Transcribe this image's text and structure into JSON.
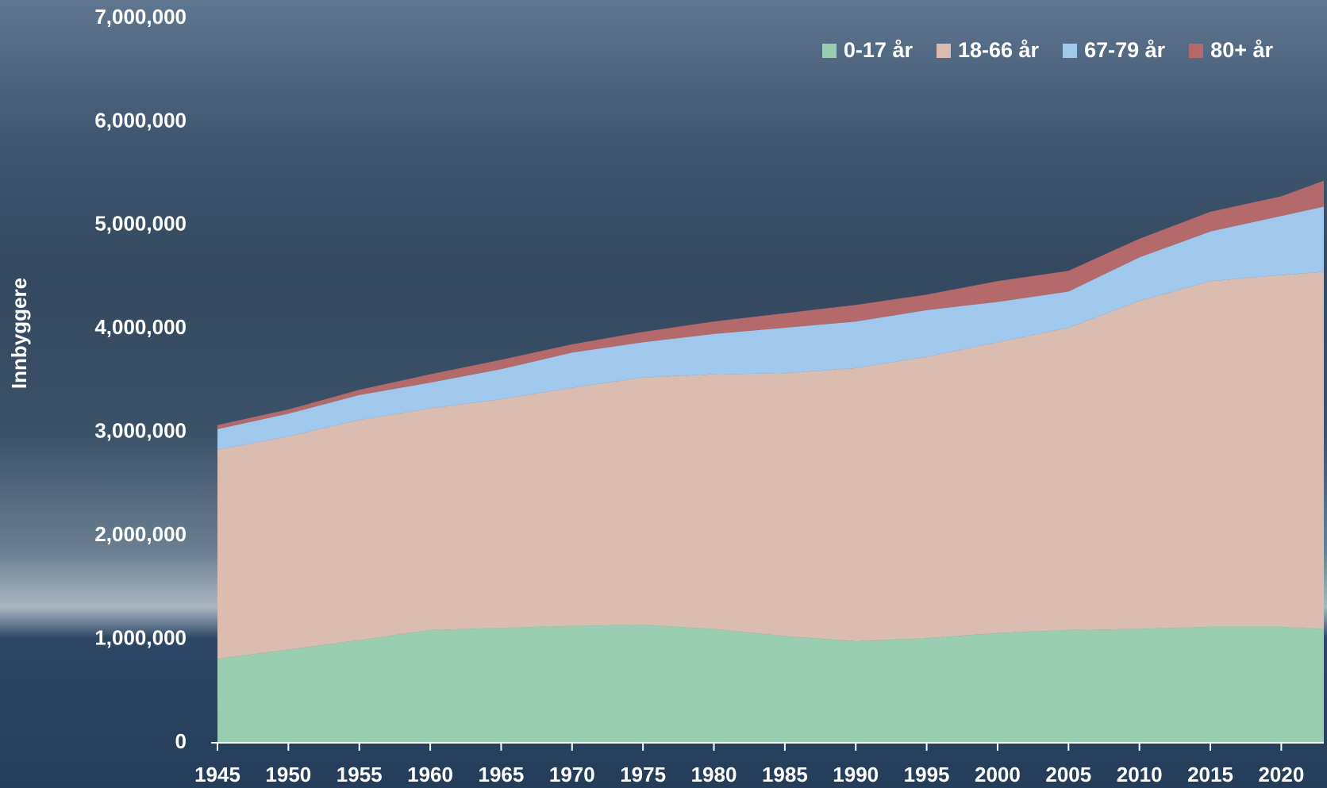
{
  "chart_data": {
    "type": "stacked-area",
    "y_label": "Innbyggere",
    "x": [
      1945,
      1950,
      1955,
      1960,
      1965,
      1970,
      1975,
      1980,
      1985,
      1990,
      1995,
      2000,
      2005,
      2010,
      2015,
      2020,
      2023
    ],
    "series": [
      {
        "name": "0-17 år",
        "color": "#98cdb2",
        "values": [
          810000,
          900000,
          990000,
          1090000,
          1110000,
          1130000,
          1140000,
          1100000,
          1030000,
          980000,
          1010000,
          1060000,
          1090000,
          1100000,
          1120000,
          1120000,
          1100000
        ]
      },
      {
        "name": "18-66 år",
        "color": "#dabcb0",
        "values": [
          2020000,
          2060000,
          2130000,
          2140000,
          2210000,
          2300000,
          2390000,
          2460000,
          2540000,
          2640000,
          2720000,
          2810000,
          2920000,
          3170000,
          3340000,
          3400000,
          3450000
        ]
      },
      {
        "name": "67-79 år",
        "color": "#9fc8ec",
        "values": [
          200000,
          220000,
          240000,
          250000,
          290000,
          340000,
          340000,
          390000,
          440000,
          450000,
          450000,
          390000,
          350000,
          420000,
          480000,
          570000,
          630000
        ]
      },
      {
        "name": "80+ år",
        "color": "#b46a6a",
        "values": [
          40000,
          40000,
          50000,
          80000,
          90000,
          80000,
          100000,
          120000,
          140000,
          160000,
          150000,
          200000,
          200000,
          180000,
          190000,
          190000,
          250000
        ]
      }
    ],
    "xlim": [
      1945,
      2023
    ],
    "xticks": [
      1945,
      1950,
      1955,
      1960,
      1965,
      1970,
      1975,
      1980,
      1985,
      1990,
      1995,
      2000,
      2005,
      2010,
      2015,
      2020
    ],
    "ylim": [
      0,
      7000000
    ],
    "yticks": [
      0,
      {
        "value": 1000000,
        "label": "1,000,000"
      },
      {
        "value": 2000000,
        "label": "2,000,000"
      },
      {
        "value": 3000000,
        "label": "3,000,000"
      },
      {
        "value": 4000000,
        "label": "4,000,000"
      },
      {
        "value": 5000000,
        "label": "5,000,000"
      },
      {
        "value": 6000000,
        "label": "6,000,000"
      },
      {
        "value": 7000000,
        "label": "7,000,000"
      }
    ],
    "legend": "top-right"
  }
}
